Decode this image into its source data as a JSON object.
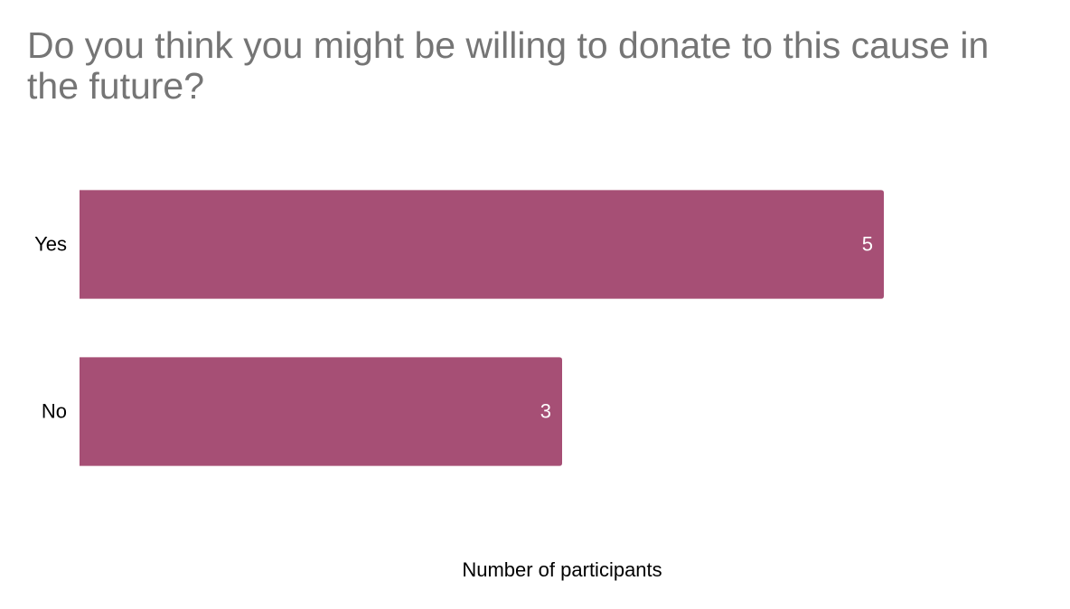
{
  "chart_data": {
    "type": "bar",
    "orientation": "horizontal",
    "title": "Do you think you might be willing to donate to this cause in the future?",
    "x_label": "Number of participants",
    "categories": [
      "Yes",
      "No"
    ],
    "values": [
      5,
      3
    ],
    "color": "#a64f75",
    "xlim": [
      0,
      6
    ]
  }
}
